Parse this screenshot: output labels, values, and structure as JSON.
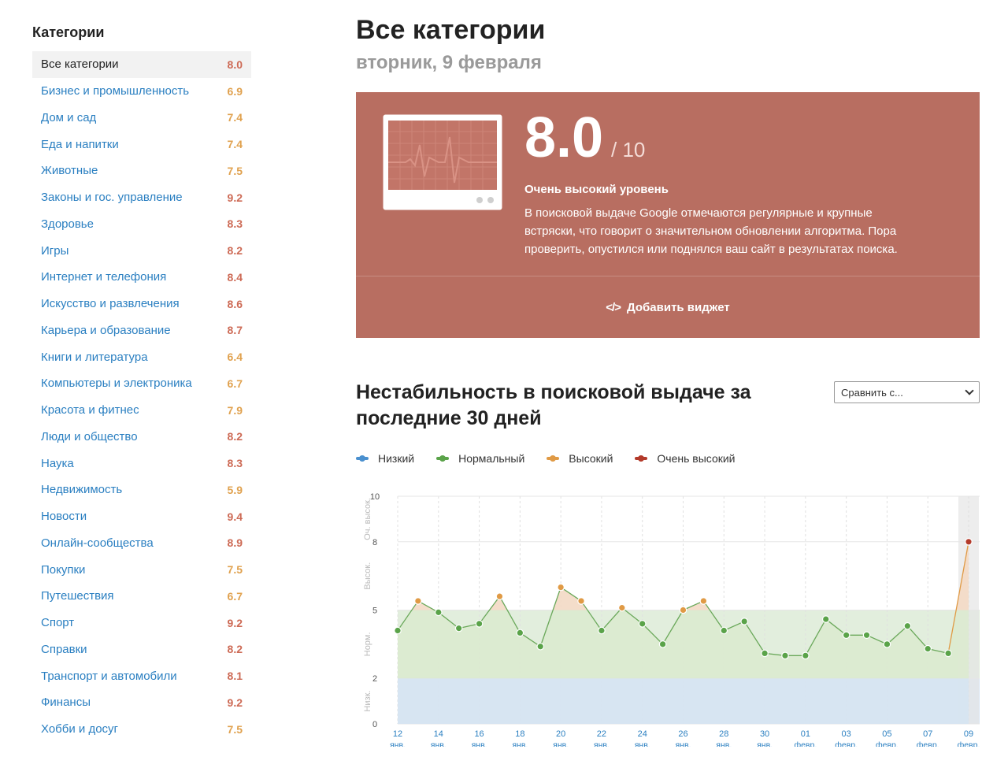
{
  "sidebar": {
    "title": "Категории",
    "items": [
      {
        "label": "Все категории",
        "score": "8.0",
        "level": "red"
      },
      {
        "label": "Бизнес и промышленность",
        "score": "6.9",
        "level": "orange"
      },
      {
        "label": "Дом и сад",
        "score": "7.4",
        "level": "orange"
      },
      {
        "label": "Еда и напитки",
        "score": "7.4",
        "level": "orange"
      },
      {
        "label": "Животные",
        "score": "7.5",
        "level": "orange"
      },
      {
        "label": "Законы и гос. управление",
        "score": "9.2",
        "level": "red"
      },
      {
        "label": "Здоровье",
        "score": "8.3",
        "level": "red"
      },
      {
        "label": "Игры",
        "score": "8.2",
        "level": "red"
      },
      {
        "label": "Интернет и телефония",
        "score": "8.4",
        "level": "red"
      },
      {
        "label": "Искусство и развлечения",
        "score": "8.6",
        "level": "red"
      },
      {
        "label": "Карьера и образование",
        "score": "8.7",
        "level": "red"
      },
      {
        "label": "Книги и литература",
        "score": "6.4",
        "level": "orange"
      },
      {
        "label": "Компьютеры и электроника",
        "score": "6.7",
        "level": "orange"
      },
      {
        "label": "Красота и фитнес",
        "score": "7.9",
        "level": "orange"
      },
      {
        "label": "Люди и общество",
        "score": "8.2",
        "level": "red"
      },
      {
        "label": "Наука",
        "score": "8.3",
        "level": "red"
      },
      {
        "label": "Недвижимость",
        "score": "5.9",
        "level": "orange"
      },
      {
        "label": "Новости",
        "score": "9.4",
        "level": "red"
      },
      {
        "label": "Онлайн-сообщества",
        "score": "8.9",
        "level": "red"
      },
      {
        "label": "Покупки",
        "score": "7.5",
        "level": "orange"
      },
      {
        "label": "Путешествия",
        "score": "6.7",
        "level": "orange"
      },
      {
        "label": "Спорт",
        "score": "9.2",
        "level": "red"
      },
      {
        "label": "Справки",
        "score": "8.2",
        "level": "red"
      },
      {
        "label": "Транспорт и автомобили",
        "score": "8.1",
        "level": "red"
      },
      {
        "label": "Финансы",
        "score": "9.2",
        "level": "red"
      },
      {
        "label": "Хобби и досуг",
        "score": "7.5",
        "level": "orange"
      }
    ]
  },
  "header": {
    "title": "Все категории",
    "date": "вторник, 9 февраля"
  },
  "score_card": {
    "score": "8.0",
    "max": "/ 10",
    "level_title": "Очень высокий уровень",
    "description": "В поисковой выдаче Google отмечаются регулярные и крупные встряски, что говорит о значительном обновлении алгоритма. Пора проверить, опустился или поднялся ваш сайт в результатах поиска.",
    "widget_button": "Добавить виджет",
    "background_color": "#b86e61"
  },
  "chart_section": {
    "title": "Нестабильность в поисковой выдаче за последние 30 дней",
    "compare_placeholder": "Сравнить с...",
    "legend": [
      {
        "label": "Низкий",
        "color": "#4a90cf"
      },
      {
        "label": "Нормальный",
        "color": "#5aa349"
      },
      {
        "label": "Высокий",
        "color": "#e09a45"
      },
      {
        "label": "Очень высокий",
        "color": "#b33a2a"
      }
    ]
  },
  "chart_data": {
    "type": "line",
    "ylim": [
      0,
      10
    ],
    "y_ticks": [
      "0",
      "2",
      "5",
      "8",
      "10"
    ],
    "y_tick_values": [
      0,
      2,
      5,
      8,
      10
    ],
    "bands": [
      {
        "label": "Низк.",
        "from": 0,
        "to": 2,
        "color": "#dbe7f3"
      },
      {
        "label": "Норм.",
        "from": 2,
        "to": 5,
        "color": "#e2eedd"
      },
      {
        "label": "Высок.",
        "from": 5,
        "to": 8,
        "color": "#f5e4d6"
      },
      {
        "label": "Оч. высок.",
        "from": 8,
        "to": 10,
        "color": "#f2ddd9"
      }
    ],
    "x_tick_labels": [
      {
        "day": "12",
        "month": "янв."
      },
      {
        "day": "14",
        "month": "янв."
      },
      {
        "day": "16",
        "month": "янв."
      },
      {
        "day": "18",
        "month": "янв."
      },
      {
        "day": "20",
        "month": "янв."
      },
      {
        "day": "22",
        "month": "янв."
      },
      {
        "day": "24",
        "month": "янв."
      },
      {
        "day": "26",
        "month": "янв."
      },
      {
        "day": "28",
        "month": "янв."
      },
      {
        "day": "30",
        "month": "янв."
      },
      {
        "day": "01",
        "month": "февр."
      },
      {
        "day": "03",
        "month": "февр."
      },
      {
        "day": "05",
        "month": "февр."
      },
      {
        "day": "07",
        "month": "февр."
      },
      {
        "day": "09",
        "month": "февр."
      }
    ],
    "x": [
      "12 янв.",
      "13 янв.",
      "14 янв.",
      "15 янв.",
      "16 янв.",
      "17 янв.",
      "18 янв.",
      "19 янв.",
      "20 янв.",
      "21 янв.",
      "22 янв.",
      "23 янв.",
      "24 янв.",
      "25 янв.",
      "26 янв.",
      "27 янв.",
      "28 янв.",
      "29 янв.",
      "30 янв.",
      "31 янв.",
      "01 февр.",
      "02 февр.",
      "03 февр.",
      "04 февр.",
      "05 февр.",
      "06 февр.",
      "07 февр.",
      "08 февр.",
      "09 февр."
    ],
    "values": [
      4.1,
      5.4,
      4.9,
      4.2,
      4.4,
      5.6,
      4.0,
      3.4,
      6.0,
      5.4,
      4.1,
      5.1,
      4.4,
      3.5,
      5.0,
      5.4,
      4.1,
      4.5,
      3.1,
      3.0,
      3.0,
      4.6,
      3.9,
      3.9,
      3.5,
      4.3,
      3.3,
      3.1,
      8.0
    ],
    "levels": [
      "norm",
      "high",
      "norm",
      "norm",
      "norm",
      "high",
      "norm",
      "norm",
      "high",
      "high",
      "norm",
      "high",
      "norm",
      "norm",
      "high",
      "high",
      "norm",
      "norm",
      "norm",
      "norm",
      "norm",
      "norm",
      "norm",
      "norm",
      "norm",
      "norm",
      "norm",
      "norm",
      "very_high"
    ],
    "highlighted_x": "09 февр.",
    "grid": true
  }
}
